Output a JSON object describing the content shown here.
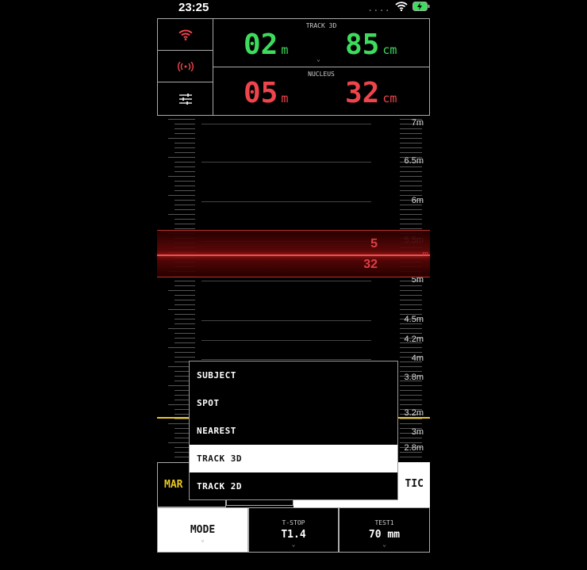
{
  "status": {
    "time": "23:25",
    "signal": "....",
    "wifi_icon": "wifi-icon",
    "battery_icon": "battery-charging-icon"
  },
  "colors": {
    "green": "#3ddc5c",
    "red": "#f0444c",
    "yellow": "#e8c825"
  },
  "track": {
    "label": "TRACK 3D",
    "meters": "02",
    "m_unit": "m",
    "cm": "85",
    "cm_unit": "cm"
  },
  "nucleus": {
    "label": "NUCLEUS",
    "meters": "05",
    "m_unit": "m",
    "cm": "32",
    "cm_unit": "cm"
  },
  "ruler": {
    "labels": [
      "7m",
      "6.5m",
      "6m",
      "5.5m",
      "5m",
      "4.5m",
      "4.2m",
      "4m",
      "3.8m",
      "3.2m",
      "3m",
      "2.8m"
    ],
    "focus_m": "5",
    "focus_cm": "32",
    "focus_unit": "m"
  },
  "buttons": {
    "left": "MAR",
    "right": "TIC"
  },
  "menu": {
    "items": [
      "SUBJECT",
      "SPOT",
      "NEAREST",
      "TRACK 3D",
      "TRACK 2D"
    ],
    "selected": "TRACK 3D"
  },
  "bottom": {
    "mode": "MODE",
    "tstop_label": "T-STOP",
    "tstop_value": "T1.4",
    "lens_label": "TEST1",
    "lens_value": "70 mm"
  }
}
